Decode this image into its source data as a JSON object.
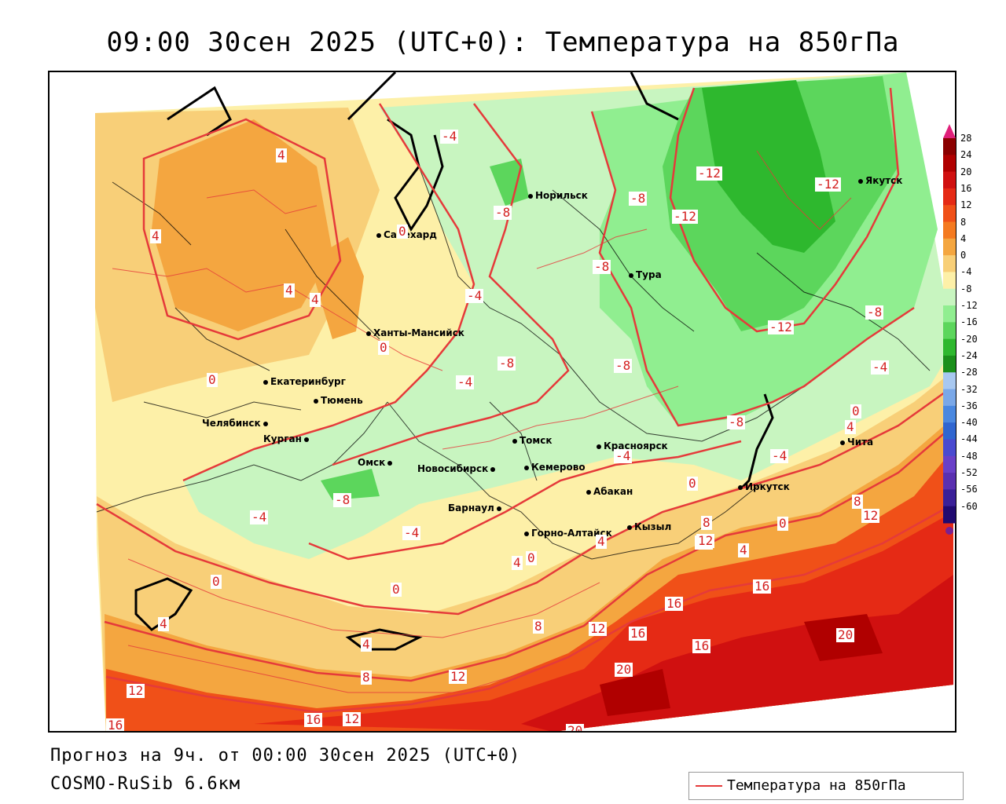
{
  "title": "09:00 30сен 2025 (UTC+0): Температура на 850гПа",
  "footer": {
    "line1": "Прогноз на 9ч. от 00:00 30сен 2025 (UTC+0)",
    "line2": "COSMO-RuSib 6.6км"
  },
  "legend": {
    "label": "Температура на 850гПа",
    "line_color": "#e53a3a"
  },
  "colorbar": {
    "labels": [
      "28",
      "24",
      "20",
      "16",
      "12",
      "8",
      "4",
      "0",
      "-4",
      "-8",
      "-12",
      "-16",
      "-20",
      "-24",
      "-28",
      "-32",
      "-36",
      "-40",
      "-44",
      "-48",
      "-52",
      "-56",
      "-60"
    ],
    "colors": [
      "#8b0000",
      "#b00000",
      "#d01010",
      "#e52a15",
      "#f05018",
      "#f47a20",
      "#f4a640",
      "#f8cf78",
      "#fdf0a8",
      "#c8f5c0",
      "#90ee90",
      "#5cd65c",
      "#2eb82e",
      "#1a8f1a",
      "#a8c8f0",
      "#7aa8e8",
      "#4a88e0",
      "#3066d0",
      "#4a4ad0",
      "#6a40c8",
      "#5a30b0",
      "#3a2098",
      "#200a70"
    ]
  },
  "cities": [
    {
      "name": "Норильск",
      "icon": "city-dot"
    },
    {
      "name": "Якутск",
      "icon": "city-dot"
    },
    {
      "name": "Салехард",
      "icon": "city-dot"
    },
    {
      "name": "Тура",
      "icon": "city-dot"
    },
    {
      "name": "Ханты-Мансийск",
      "icon": "city-dot"
    },
    {
      "name": "Екатеринбург",
      "icon": "city-dot"
    },
    {
      "name": "Тюмень",
      "icon": "city-dot"
    },
    {
      "name": "Челябинск",
      "icon": "city-dot"
    },
    {
      "name": "Курган",
      "icon": "city-dot"
    },
    {
      "name": "Омск",
      "icon": "city-dot"
    },
    {
      "name": "Новосибирск",
      "icon": "city-dot"
    },
    {
      "name": "Томск",
      "icon": "city-dot"
    },
    {
      "name": "Кемерово",
      "icon": "city-dot"
    },
    {
      "name": "Красноярск",
      "icon": "city-dot"
    },
    {
      "name": "Барнаул",
      "icon": "city-dot"
    },
    {
      "name": "Абакан",
      "icon": "city-dot"
    },
    {
      "name": "Горно-Алтайск",
      "icon": "city-dot"
    },
    {
      "name": "Кызыл",
      "icon": "city-dot"
    },
    {
      "name": "Иркутск",
      "icon": "city-dot"
    },
    {
      "name": "Чита",
      "icon": "city-dot"
    }
  ],
  "contour_labels": [
    "4",
    "4",
    "4",
    "4",
    "0",
    "0",
    "0",
    "0",
    "-4",
    "-4",
    "-4",
    "-4",
    "-4",
    "-8",
    "-8",
    "-8",
    "-8",
    "-8",
    "-8",
    "-12",
    "-12",
    "-12",
    "-12",
    "-4",
    "0",
    "4",
    "-4",
    "0",
    "8",
    "12",
    "4",
    "0",
    "8",
    "12",
    "4",
    "16",
    "16",
    "12",
    "16",
    "16",
    "20",
    "20",
    "8",
    "12",
    "4",
    "8",
    "12",
    "4",
    "0",
    "0",
    "12",
    "16",
    "16",
    "12",
    "20",
    "-8",
    "-8",
    "4",
    "-4"
  ]
}
